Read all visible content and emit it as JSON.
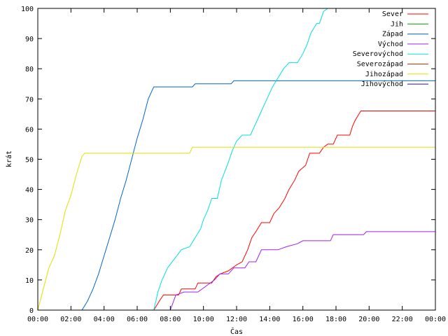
{
  "chart_data": {
    "type": "line",
    "xlabel": "Čas",
    "ylabel": "krát",
    "xlim": [
      "00:00",
      "24:00"
    ],
    "ylim": [
      0,
      100
    ],
    "x_ticks": [
      "00:00",
      "02:00",
      "04:00",
      "06:00",
      "08:00",
      "10:00",
      "12:00",
      "14:00",
      "16:00",
      "18:00",
      "20:00",
      "22:00",
      "00:00"
    ],
    "y_ticks": [
      "0",
      "10",
      "20",
      "30",
      "40",
      "50",
      "60",
      "70",
      "80",
      "90",
      "100"
    ],
    "grid": false,
    "legend_position": "top-right",
    "series": [
      {
        "name": "Sever",
        "color": "#ff0000",
        "points": [
          [
            "07:00",
            0
          ],
          [
            "07:20",
            3
          ],
          [
            "07:35",
            5
          ],
          [
            "08:30",
            5
          ],
          [
            "08:40",
            7
          ],
          [
            "09:30",
            7
          ],
          [
            "09:40",
            9
          ],
          [
            "10:30",
            9
          ],
          [
            "10:45",
            11
          ],
          [
            "11:00",
            12
          ],
          [
            "11:30",
            13
          ],
          [
            "11:45",
            14
          ],
          [
            "12:00",
            15
          ],
          [
            "12:20",
            16
          ],
          [
            "12:40",
            20
          ],
          [
            "12:55",
            24
          ],
          [
            "13:10",
            26
          ],
          [
            "13:30",
            29
          ],
          [
            "14:00",
            29
          ],
          [
            "14:15",
            32
          ],
          [
            "14:35",
            34
          ],
          [
            "14:55",
            37
          ],
          [
            "15:10",
            40
          ],
          [
            "15:30",
            43
          ],
          [
            "15:45",
            46
          ],
          [
            "16:10",
            48
          ],
          [
            "16:25",
            52
          ],
          [
            "17:00",
            52
          ],
          [
            "17:15",
            54
          ],
          [
            "17:30",
            55
          ],
          [
            "17:50",
            55
          ],
          [
            "18:05",
            58
          ],
          [
            "18:50",
            58
          ],
          [
            "19:00",
            61
          ],
          [
            "19:10",
            63
          ],
          [
            "19:30",
            66
          ],
          [
            "24:00",
            66
          ]
        ]
      },
      {
        "name": "Východ",
        "color": "#a020f0",
        "points": [
          [
            "08:00",
            0
          ],
          [
            "08:20",
            5
          ],
          [
            "08:50",
            6
          ],
          [
            "09:40",
            6
          ],
          [
            "10:10",
            8
          ],
          [
            "10:40",
            10
          ],
          [
            "11:00",
            12
          ],
          [
            "11:30",
            12
          ],
          [
            "11:50",
            14
          ],
          [
            "12:30",
            14
          ],
          [
            "12:45",
            16
          ],
          [
            "13:10",
            16
          ],
          [
            "13:30",
            20
          ],
          [
            "14:30",
            20
          ],
          [
            "15:00",
            21
          ],
          [
            "15:40",
            22
          ],
          [
            "16:00",
            23
          ],
          [
            "17:40",
            23
          ],
          [
            "17:50",
            25
          ],
          [
            "19:40",
            25
          ],
          [
            "19:50",
            26
          ],
          [
            "24:00",
            26
          ]
        ]
      },
      {
        "name": "Západ",
        "color": "#0066cc",
        "points": [
          [
            "02:40",
            0
          ],
          [
            "03:00",
            3
          ],
          [
            "03:20",
            7
          ],
          [
            "03:40",
            12
          ],
          [
            "04:00",
            18
          ],
          [
            "04:20",
            24
          ],
          [
            "04:40",
            30
          ],
          [
            "05:00",
            37
          ],
          [
            "05:20",
            43
          ],
          [
            "05:40",
            50
          ],
          [
            "06:00",
            57
          ],
          [
            "06:20",
            63
          ],
          [
            "06:40",
            70
          ],
          [
            "07:00",
            74
          ],
          [
            "09:20",
            74
          ],
          [
            "09:30",
            75
          ],
          [
            "11:40",
            75
          ],
          [
            "11:50",
            76
          ],
          [
            "24:00",
            76
          ]
        ]
      },
      {
        "name": "Severovýchod",
        "color": "#00e0e0",
        "points": [
          [
            "07:00",
            0
          ],
          [
            "07:15",
            6
          ],
          [
            "07:30",
            10
          ],
          [
            "07:50",
            14
          ],
          [
            "08:15",
            17
          ],
          [
            "08:40",
            20
          ],
          [
            "09:10",
            21
          ],
          [
            "09:30",
            24
          ],
          [
            "09:50",
            27
          ],
          [
            "10:00",
            30
          ],
          [
            "10:15",
            33
          ],
          [
            "10:30",
            37
          ],
          [
            "10:50",
            37
          ],
          [
            "11:05",
            43
          ],
          [
            "11:30",
            49
          ],
          [
            "11:45",
            53
          ],
          [
            "12:00",
            56
          ],
          [
            "12:20",
            58
          ],
          [
            "12:50",
            58
          ],
          [
            "13:10",
            62
          ],
          [
            "13:30",
            66
          ],
          [
            "13:50",
            70
          ],
          [
            "14:10",
            74
          ],
          [
            "14:30",
            77
          ],
          [
            "14:50",
            80
          ],
          [
            "15:10",
            82
          ],
          [
            "15:40",
            82
          ],
          [
            "16:00",
            85
          ],
          [
            "16:15",
            88
          ],
          [
            "16:30",
            92
          ],
          [
            "16:50",
            95
          ],
          [
            "17:00",
            95
          ],
          [
            "17:15",
            99
          ],
          [
            "17:30",
            100
          ]
        ]
      },
      {
        "name": "Jihozápad",
        "color": "#e0e000",
        "points": [
          [
            "00:00",
            0
          ],
          [
            "00:20",
            7
          ],
          [
            "00:40",
            14
          ],
          [
            "01:00",
            18
          ],
          [
            "01:20",
            25
          ],
          [
            "01:40",
            33
          ],
          [
            "02:00",
            38
          ],
          [
            "02:20",
            45
          ],
          [
            "02:40",
            51
          ],
          [
            "02:50",
            52
          ],
          [
            "09:10",
            52
          ],
          [
            "09:20",
            54
          ],
          [
            "24:00",
            54
          ]
        ]
      }
    ],
    "legend": [
      {
        "name": "Sever",
        "color": "#ff0000"
      },
      {
        "name": "Jih",
        "color": "#00a000"
      },
      {
        "name": "Západ",
        "color": "#0066cc"
      },
      {
        "name": "Východ",
        "color": "#a020f0"
      },
      {
        "name": "Severovýchod",
        "color": "#00e0e0"
      },
      {
        "name": "Severozápad",
        "color": "#cc3300"
      },
      {
        "name": "Jihozápad",
        "color": "#e0e000"
      },
      {
        "name": "Jihovýchod",
        "color": "#3300cc"
      }
    ]
  }
}
